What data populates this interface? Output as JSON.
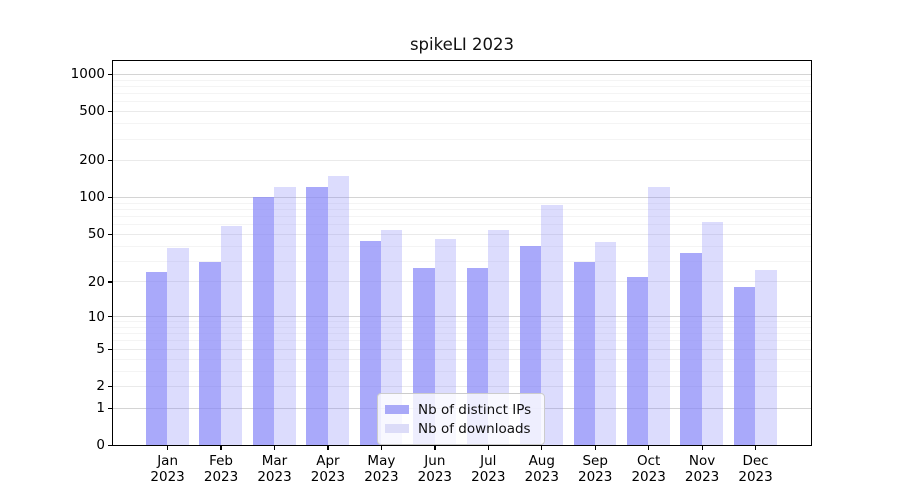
{
  "title": "spikeLI 2023",
  "year_label": "2023",
  "chart_data": {
    "type": "bar",
    "title": "spikeLI 2023",
    "categories": [
      "Jan",
      "Feb",
      "Mar",
      "Apr",
      "May",
      "Jun",
      "Jul",
      "Aug",
      "Sep",
      "Oct",
      "Nov",
      "Dec"
    ],
    "category_year": "2023",
    "series": [
      {
        "name": "Nb of distinct IPs",
        "color_solid": "#a9a9f8",
        "color_rgba": "rgba(136,136,248,0.72)",
        "values": [
          24,
          29,
          100,
          122,
          44,
          26,
          26,
          40,
          29,
          22,
          35,
          18
        ]
      },
      {
        "name": "Nb of downloads",
        "color_solid": "#dcdcf8",
        "color_rgba": "rgba(136,136,248,0.29)",
        "values": [
          38,
          58,
          120,
          150,
          54,
          45,
          54,
          86,
          43,
          120,
          62,
          25
        ]
      }
    ],
    "xlabel": "",
    "ylabel": "",
    "y_scale": "log1p-base10",
    "y_ticks": [
      0,
      1,
      2,
      5,
      10,
      20,
      50,
      100,
      200,
      500,
      1000
    ],
    "y_minor_ticks": [
      3,
      4,
      6,
      7,
      8,
      9,
      30,
      40,
      60,
      70,
      80,
      90,
      300,
      400,
      600,
      700,
      800,
      900
    ],
    "ylim": [
      0,
      1270
    ],
    "grid": true,
    "legend_position": "lower-center"
  }
}
